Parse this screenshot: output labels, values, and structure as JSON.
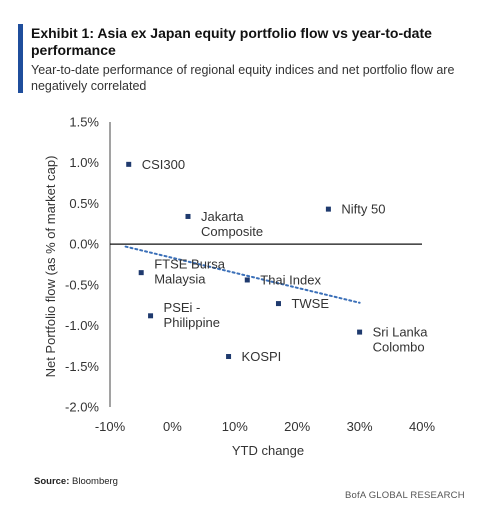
{
  "header": {
    "title": "Exhibit 1: Asia ex Japan equity portfolio flow vs year-to-date performance",
    "subtitle": "Year-to-date performance of regional equity indices and net portfolio flow are negatively correlated"
  },
  "colors": {
    "accent": "#1f4e9c",
    "marker": "#1f3a6e",
    "trend": "#3a6fb8"
  },
  "footer": {
    "source_label": "Source:",
    "source_value": "Bloomberg",
    "brand": "BofA GLOBAL RESEARCH"
  },
  "chart_data": {
    "type": "scatter",
    "xlabel": "YTD change",
    "ylabel": "Net Portfolio flow (as % of market cap)",
    "xlim": [
      -10,
      40
    ],
    "ylim": [
      -2.0,
      1.5
    ],
    "xticks": [
      -10,
      0,
      10,
      20,
      30,
      40
    ],
    "yticks": [
      1.5,
      1.0,
      0.5,
      0.0,
      -0.5,
      -1.0,
      -1.5,
      -2.0
    ],
    "xtick_labels": [
      "-10%",
      "0%",
      "10%",
      "20%",
      "30%",
      "40%"
    ],
    "ytick_labels": [
      "1.5%",
      "1.0%",
      "0.5%",
      "0.0%",
      "-0.5%",
      "-1.0%",
      "-1.5%",
      "-2.0%"
    ],
    "grid": false,
    "trendline": {
      "style": "dotted",
      "x": [
        -7.5,
        30.0
      ],
      "y": [
        -0.03,
        -0.72
      ]
    },
    "points": [
      {
        "label": "CSI300",
        "x": -7.0,
        "y": 0.98,
        "anchor": "right"
      },
      {
        "label": "Jakarta\nComposite",
        "x": 2.5,
        "y": 0.34,
        "anchor": "right"
      },
      {
        "label": "Nifty 50",
        "x": 25.0,
        "y": 0.43,
        "anchor": "right"
      },
      {
        "label": "FTSE Bursa\nMalaysia",
        "x": -5.0,
        "y": -0.35,
        "anchor": "right-up"
      },
      {
        "label": "Thai Index",
        "x": 12.0,
        "y": -0.44,
        "anchor": "right"
      },
      {
        "label": "TWSE",
        "x": 17.0,
        "y": -0.73,
        "anchor": "right"
      },
      {
        "label": "PSEi -\nPhilippine",
        "x": -3.5,
        "y": -0.88,
        "anchor": "right-up"
      },
      {
        "label": "Sri Lanka\nColombo",
        "x": 30.0,
        "y": -1.08,
        "anchor": "right"
      },
      {
        "label": "KOSPI",
        "x": 9.0,
        "y": -1.38,
        "anchor": "right"
      }
    ]
  }
}
